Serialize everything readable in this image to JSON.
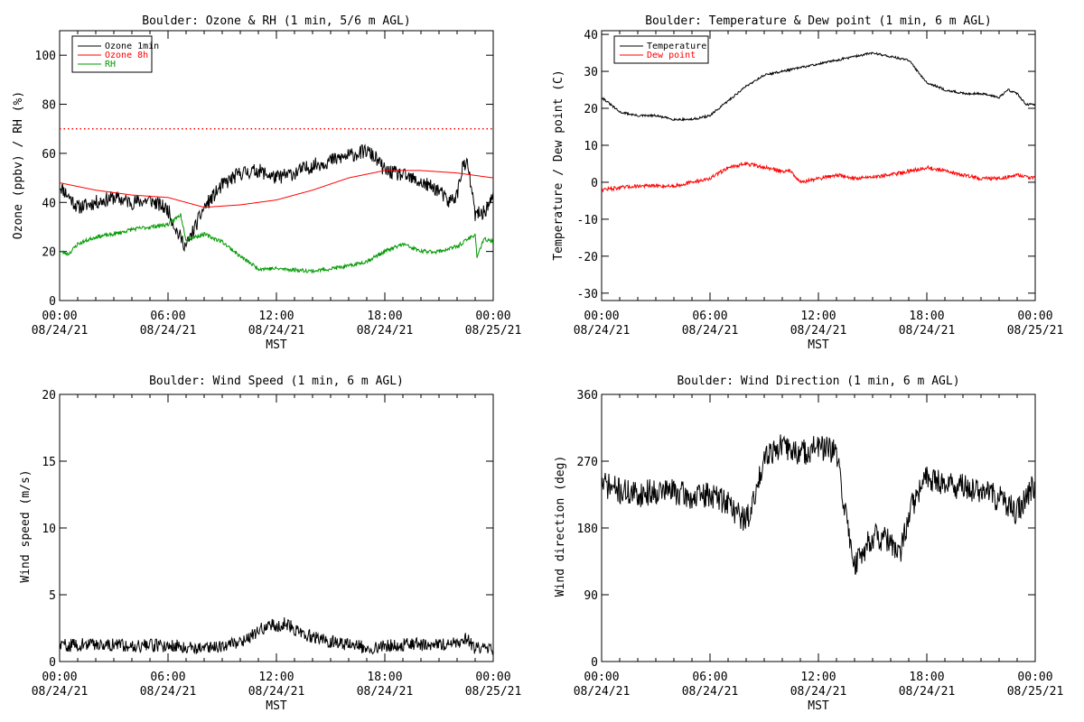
{
  "figure": {
    "background": "#ffffff",
    "axis_color": "#000000"
  },
  "chart_data": [
    {
      "id": "ozone",
      "type": "line",
      "title": "Boulder: Ozone & RH (1 min, 5/6 m AGL)",
      "ylabel": "Ozone (ppbv) / RH (%)",
      "xlabel": "MST",
      "ylim": [
        0,
        110
      ],
      "yticks": [
        0,
        20,
        40,
        60,
        80,
        100
      ],
      "xlim_hours": [
        0,
        24
      ],
      "xticks": [
        {
          "hours": 0,
          "time": "00:00",
          "date": "08/24/21"
        },
        {
          "hours": 6,
          "time": "06:00",
          "date": "08/24/21"
        },
        {
          "hours": 12,
          "time": "12:00",
          "date": "08/24/21"
        },
        {
          "hours": 18,
          "time": "18:00",
          "date": "08/24/21"
        },
        {
          "hours": 24,
          "time": "00:00",
          "date": "08/25/21"
        }
      ],
      "legend": {
        "placement": "top-left",
        "entries": [
          "Ozone 1min",
          "Ozone 8h",
          "RH"
        ]
      },
      "reference_lines": [
        {
          "y": 70,
          "color": "#ff0000",
          "style": "dotted"
        }
      ],
      "series": [
        {
          "name": "Ozone 1min",
          "color": "#000000",
          "noise": 3,
          "seed": 11,
          "x": [
            0,
            1,
            2,
            3,
            4,
            5,
            6,
            6.5,
            7,
            7.5,
            8,
            9,
            10,
            11,
            12,
            13,
            14,
            15,
            16,
            17,
            17.5,
            18,
            19,
            20,
            21,
            21.5,
            22,
            22.3,
            22.6,
            23,
            23.5,
            24
          ],
          "y": [
            47,
            38,
            40,
            42,
            40,
            41,
            37,
            28,
            22,
            30,
            38,
            47,
            52,
            53,
            50,
            52,
            55,
            57,
            59,
            61,
            58,
            53,
            51,
            48,
            45,
            40,
            43,
            55,
            55,
            35,
            36,
            42
          ]
        },
        {
          "name": "Ozone 8h",
          "color": "#ff0000",
          "noise": 0,
          "seed": 0,
          "x": [
            0,
            2,
            4,
            6,
            7,
            8,
            10,
            12,
            14,
            16,
            18,
            20,
            22,
            24
          ],
          "y": [
            48,
            45,
            43,
            42,
            40,
            38,
            39,
            41,
            45,
            50,
            53,
            53,
            52,
            50
          ]
        },
        {
          "name": "RH",
          "color": "#009900",
          "noise": 0.8,
          "seed": 23,
          "x": [
            0,
            0.5,
            1,
            2,
            3,
            4,
            5,
            6,
            6.7,
            7,
            8,
            9,
            10,
            11,
            12,
            14,
            16,
            17,
            18,
            19,
            20,
            21,
            22,
            23,
            23.1,
            23.5,
            24
          ],
          "y": [
            20,
            19,
            23,
            26,
            27,
            29,
            30,
            31,
            35,
            25,
            27,
            24,
            18,
            13,
            13,
            12,
            14,
            16,
            20,
            23,
            20,
            20,
            22,
            27,
            18,
            25,
            24
          ]
        }
      ]
    },
    {
      "id": "temp",
      "type": "line",
      "title": "Boulder: Temperature & Dew point (1 min, 6 m AGL)",
      "ylabel": "Temperature / Dew point (C)",
      "xlabel": "MST",
      "ylim": [
        -32,
        41
      ],
      "yticks": [
        -30,
        -20,
        -10,
        0,
        10,
        20,
        30,
        40
      ],
      "xlim_hours": [
        0,
        24
      ],
      "xticks": [
        {
          "hours": 0,
          "time": "00:00",
          "date": "08/24/21"
        },
        {
          "hours": 6,
          "time": "06:00",
          "date": "08/24/21"
        },
        {
          "hours": 12,
          "time": "12:00",
          "date": "08/24/21"
        },
        {
          "hours": 18,
          "time": "18:00",
          "date": "08/24/21"
        },
        {
          "hours": 24,
          "time": "00:00",
          "date": "08/25/21"
        }
      ],
      "legend": {
        "placement": "top-left",
        "entries": [
          "Temperature",
          "Dew point"
        ]
      },
      "series": [
        {
          "name": "Temperature",
          "color": "#000000",
          "noise": 0.3,
          "seed": 31,
          "x": [
            0,
            1,
            2,
            3,
            4,
            5,
            6,
            7,
            8,
            9,
            10,
            11,
            12,
            13,
            14,
            15,
            16,
            17,
            18,
            19,
            20,
            21,
            22,
            22.5,
            23,
            23.5,
            24
          ],
          "y": [
            23,
            19,
            18,
            18,
            17,
            17,
            18,
            22,
            26,
            29,
            30,
            31,
            32,
            33,
            34,
            35,
            34,
            33,
            27,
            25,
            24,
            24,
            23,
            25,
            24,
            21,
            21
          ]
        },
        {
          "name": "Dew point",
          "color": "#ff0000",
          "noise": 0.5,
          "seed": 47,
          "x": [
            0,
            2,
            4,
            5,
            6,
            7,
            8,
            9,
            10,
            10.5,
            11,
            12,
            13,
            14,
            16,
            17,
            18,
            19,
            20,
            21,
            22,
            23,
            24
          ],
          "y": [
            -2,
            -1,
            -1,
            0,
            1,
            4,
            5,
            4,
            3,
            3,
            0,
            1,
            2,
            1,
            2,
            3,
            4,
            3,
            2,
            1,
            1,
            2,
            1
          ]
        }
      ]
    },
    {
      "id": "wspd",
      "type": "line",
      "title": "Boulder: Wind Speed (1 min, 6 m AGL)",
      "ylabel": "Wind speed (m/s)",
      "xlabel": "MST",
      "ylim": [
        0,
        20
      ],
      "yticks": [
        0,
        5,
        10,
        15,
        20
      ],
      "xlim_hours": [
        0,
        24
      ],
      "xticks": [
        {
          "hours": 0,
          "time": "00:00",
          "date": "08/24/21"
        },
        {
          "hours": 6,
          "time": "06:00",
          "date": "08/24/21"
        },
        {
          "hours": 12,
          "time": "12:00",
          "date": "08/24/21"
        },
        {
          "hours": 18,
          "time": "18:00",
          "date": "08/24/21"
        },
        {
          "hours": 24,
          "time": "00:00",
          "date": "08/25/21"
        }
      ],
      "legend": null,
      "series": [
        {
          "name": "",
          "color": "#000000",
          "noise": 0.5,
          "seed": 59,
          "clip_min": 0,
          "x": [
            0,
            2,
            4,
            6,
            8,
            9,
            10,
            11,
            11.5,
            12,
            12.5,
            13,
            14,
            15,
            16,
            17,
            18,
            20,
            21,
            22,
            22.5,
            23,
            24
          ],
          "y": [
            1.2,
            1.3,
            1.2,
            1.2,
            1.0,
            1.2,
            1.5,
            2.2,
            2.8,
            2.6,
            2.9,
            2.4,
            1.8,
            1.5,
            1.3,
            1.0,
            1.2,
            1.3,
            1.2,
            1.5,
            1.8,
            1.0,
            0.8
          ]
        }
      ]
    },
    {
      "id": "wdir",
      "type": "line",
      "title": "Boulder: Wind Direction (1 min, 6 m AGL)",
      "ylabel": "Wind direction (deg)",
      "xlabel": "MST",
      "ylim": [
        0,
        360
      ],
      "yticks": [
        0,
        90,
        180,
        270,
        360
      ],
      "xlim_hours": [
        0,
        24
      ],
      "xticks": [
        {
          "hours": 0,
          "time": "00:00",
          "date": "08/24/21"
        },
        {
          "hours": 6,
          "time": "06:00",
          "date": "08/24/21"
        },
        {
          "hours": 12,
          "time": "12:00",
          "date": "08/24/21"
        },
        {
          "hours": 18,
          "time": "18:00",
          "date": "08/24/21"
        },
        {
          "hours": 24,
          "time": "00:00",
          "date": "08/25/21"
        }
      ],
      "legend": null,
      "series": [
        {
          "name": "",
          "color": "#000000",
          "noise": 18,
          "seed": 71,
          "clip_min": 0,
          "clip_max": 360,
          "x": [
            0,
            1,
            2,
            3,
            4,
            5,
            6,
            7,
            7.5,
            8,
            8.5,
            9,
            10,
            11,
            12,
            13,
            13.5,
            14,
            15,
            16,
            16.5,
            17,
            18,
            19,
            20,
            21,
            22,
            23,
            24
          ],
          "y": [
            240,
            230,
            225,
            230,
            230,
            220,
            225,
            215,
            200,
            190,
            220,
            280,
            290,
            280,
            290,
            280,
            200,
            130,
            170,
            160,
            140,
            200,
            250,
            240,
            235,
            230,
            220,
            200,
            240
          ]
        }
      ]
    }
  ]
}
